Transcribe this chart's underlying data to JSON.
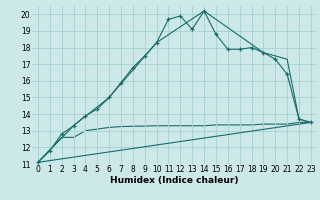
{
  "xlabel": "Humidex (Indice chaleur)",
  "background_color": "#cce8e8",
  "line_color": "#1a6b6b",
  "grid_color": "#aad4d4",
  "xlim": [
    -0.5,
    23.5
  ],
  "ylim": [
    11,
    20.5
  ],
  "xticks": [
    0,
    1,
    2,
    3,
    4,
    5,
    6,
    7,
    8,
    9,
    10,
    11,
    12,
    13,
    14,
    15,
    16,
    17,
    18,
    19,
    20,
    21,
    22,
    23
  ],
  "yticks": [
    11,
    12,
    13,
    14,
    15,
    16,
    17,
    18,
    19,
    20
  ],
  "curve1_x": [
    0,
    1,
    2,
    3,
    4,
    5,
    6,
    7,
    8,
    9,
    10,
    11,
    12,
    13,
    14,
    15,
    16,
    17,
    18,
    19,
    20,
    21,
    22,
    23
  ],
  "curve1_y": [
    11.1,
    11.8,
    12.8,
    13.3,
    13.9,
    14.3,
    15.0,
    15.9,
    16.8,
    17.5,
    18.3,
    19.7,
    19.9,
    19.1,
    20.2,
    18.8,
    17.9,
    17.9,
    18.0,
    17.7,
    17.3,
    16.4,
    13.7,
    13.5
  ],
  "curve2_x": [
    0,
    3,
    6,
    10,
    14,
    19,
    21,
    22,
    23
  ],
  "curve2_y": [
    11.1,
    13.3,
    15.0,
    18.3,
    20.2,
    17.7,
    17.3,
    13.7,
    13.5
  ],
  "curve3_x": [
    0,
    23
  ],
  "curve3_y": [
    11.1,
    13.5
  ],
  "curve4_x": [
    0,
    2,
    3,
    4,
    5,
    6,
    7,
    8,
    9,
    10,
    11,
    12,
    13,
    14,
    15,
    16,
    17,
    18,
    19,
    20,
    21,
    22,
    23
  ],
  "curve4_y": [
    11.1,
    12.6,
    12.6,
    13.0,
    13.1,
    13.2,
    13.25,
    13.27,
    13.28,
    13.3,
    13.3,
    13.3,
    13.3,
    13.3,
    13.35,
    13.35,
    13.35,
    13.35,
    13.4,
    13.4,
    13.4,
    13.5,
    13.5
  ]
}
